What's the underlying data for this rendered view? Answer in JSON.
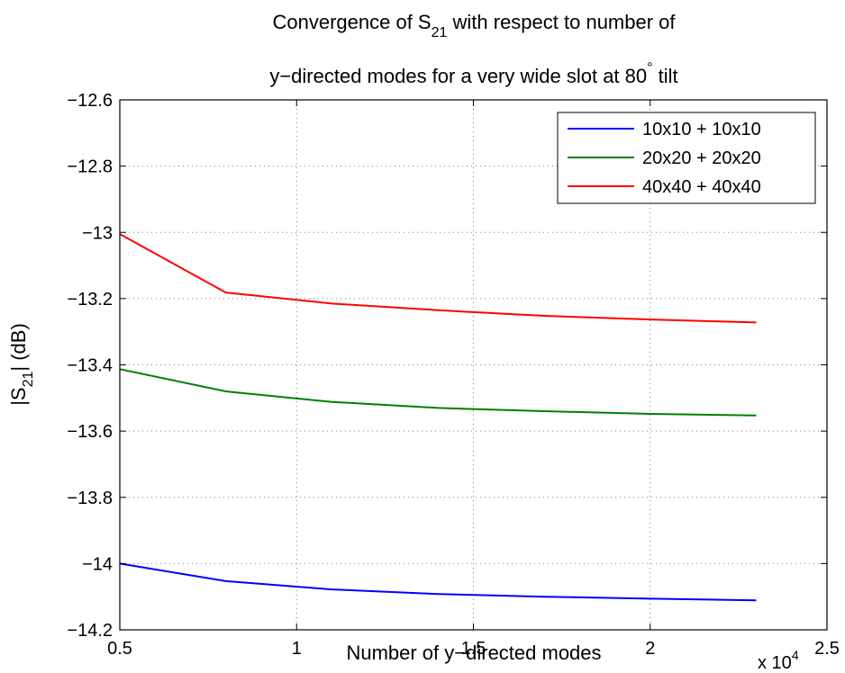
{
  "chart_data": {
    "type": "line",
    "title_line1_prefix": "Convergence of S",
    "title_line1_sub": "21",
    "title_line1_suffix": " with respect to number of",
    "title_line2_prefix": "y−directed modes for a very wide slot at 80",
    "title_line2_sup": "°",
    "title_line2_suffix": " tilt",
    "xlabel": "Number of y−directed modes",
    "ylabel_prefix": "|S",
    "ylabel_sub": "21",
    "ylabel_suffix": "| (dB)",
    "x_multiplier_prefix": "x 10",
    "x_multiplier_exp": "4",
    "x_ticks": [
      "0.5",
      "1",
      "1.5",
      "2",
      "2.5"
    ],
    "x_tick_values": [
      5000,
      10000,
      15000,
      20000,
      25000
    ],
    "y_ticks": [
      "−12.6",
      "−12.8",
      "−13",
      "−13.2",
      "−13.4",
      "−13.6",
      "−13.8",
      "−14",
      "−14.2"
    ],
    "y_tick_values": [
      -12.6,
      -12.8,
      -13.0,
      -13.2,
      -13.4,
      -13.6,
      -13.8,
      -14.0,
      -14.2
    ],
    "xlim": [
      5000,
      25000
    ],
    "ylim": [
      -14.2,
      -12.6
    ],
    "grid": true,
    "legend_position": "top-right",
    "x": [
      5000,
      8000,
      11000,
      14000,
      17000,
      20000,
      23000
    ],
    "series": [
      {
        "name": "10x10 + 10x10",
        "color": "#0000ff",
        "values": [
          -14.0,
          -14.053,
          -14.078,
          -14.092,
          -14.1,
          -14.106,
          -14.111
        ]
      },
      {
        "name": "20x20 + 20x20",
        "color": "#008000",
        "values": [
          -13.413,
          -13.48,
          -13.512,
          -13.53,
          -13.54,
          -13.548,
          -13.553
        ]
      },
      {
        "name": "40x40 + 40x40",
        "color": "#ff0000",
        "values": [
          -13.005,
          -13.182,
          -13.215,
          -13.235,
          -13.252,
          -13.263,
          -13.272
        ]
      }
    ]
  }
}
